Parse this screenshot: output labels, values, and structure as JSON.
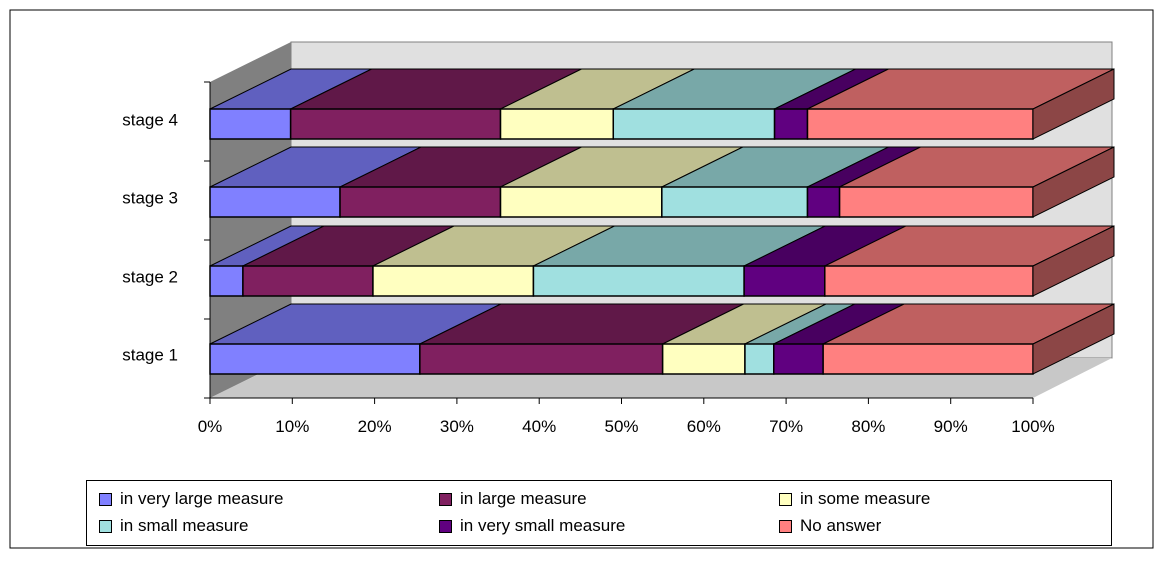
{
  "chart_data": {
    "type": "bar",
    "stacked": "percent",
    "orientation": "horizontal",
    "categories": [
      "stage 1",
      "stage 2",
      "stage 3",
      "stage 4"
    ],
    "series": [
      {
        "name": "in very large measure",
        "values": [
          25.5,
          4.0,
          15.8,
          9.8
        ],
        "color": "#8080FF"
      },
      {
        "name": "in large measure",
        "values": [
          29.5,
          15.8,
          19.5,
          25.5
        ],
        "color": "#802060"
      },
      {
        "name": "in some measure",
        "values": [
          10.0,
          19.5,
          19.6,
          13.7
        ],
        "color": "#FFFFC0"
      },
      {
        "name": "in small measure",
        "values": [
          3.5,
          25.6,
          17.7,
          19.6
        ],
        "color": "#A0E0E0"
      },
      {
        "name": "in very small measure",
        "values": [
          6.0,
          9.8,
          3.9,
          4.0
        ],
        "color": "#600080"
      },
      {
        "name": "No answer",
        "values": [
          25.5,
          25.3,
          23.5,
          27.4
        ],
        "color": "#FF8080"
      }
    ],
    "xticks": [
      "0%",
      "10%",
      "20%",
      "30%",
      "40%",
      "50%",
      "60%",
      "70%",
      "80%",
      "90%",
      "100%"
    ],
    "xlim": [
      0,
      100
    ],
    "grid": false,
    "legend": "bottom",
    "style": "3d"
  }
}
